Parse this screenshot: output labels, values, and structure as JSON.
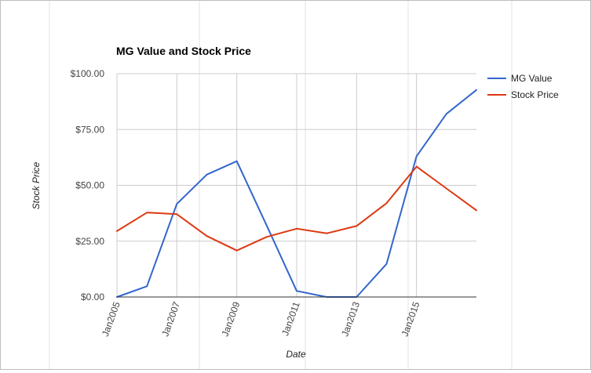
{
  "chart_data": {
    "type": "line",
    "title": "MG Value and Stock Price",
    "xlabel": "Date",
    "ylabel": "Stock Price",
    "x": [
      2005,
      2006,
      2007,
      2008,
      2009,
      2010,
      2011,
      2012,
      2013,
      2014,
      2015,
      2016,
      2017
    ],
    "xlim": [
      2005,
      2017
    ],
    "ylim": [
      0,
      100
    ],
    "x_ticks": [
      {
        "value": 2005,
        "label": "Jan2005"
      },
      {
        "value": 2007,
        "label": "Jan2007"
      },
      {
        "value": 2009,
        "label": "Jan2009"
      },
      {
        "value": 2011,
        "label": "Jan2011"
      },
      {
        "value": 2013,
        "label": "Jan2013"
      },
      {
        "value": 2015,
        "label": "Jan2015"
      }
    ],
    "y_ticks": [
      {
        "value": 0,
        "label": "$0.00"
      },
      {
        "value": 25,
        "label": "$25.00"
      },
      {
        "value": 50,
        "label": "$50.00"
      },
      {
        "value": 75,
        "label": "$75.00"
      },
      {
        "value": 100,
        "label": "$100.00"
      }
    ],
    "grid": true,
    "legend_position": "right",
    "series": [
      {
        "name": "MG Value",
        "color": "#3366cc",
        "values": [
          0,
          4.8,
          41.7,
          54.8,
          60.8,
          32.0,
          2.7,
          0,
          0,
          14.8,
          63.0,
          82.0,
          92.7
        ]
      },
      {
        "name": "Stock Price",
        "color": "#dc3912",
        "values": [
          29.5,
          37.8,
          37.1,
          27.3,
          20.8,
          26.9,
          30.6,
          28.5,
          31.8,
          42.0,
          58.4,
          48.6,
          38.8
        ]
      }
    ]
  }
}
